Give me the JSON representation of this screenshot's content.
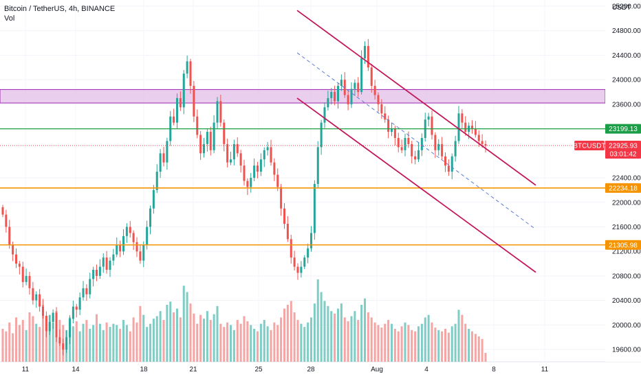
{
  "header": {
    "title": "Bitcoin / TetherUS, 4h, BINANCE",
    "indicator": "Vol"
  },
  "price_axis": {
    "currency": "USDT",
    "ticks": [
      "25200.00",
      "24800.00",
      "24400.00",
      "24000.00",
      "23600.00",
      "22400.00",
      "22000.00",
      "21600.00",
      "21200.00",
      "20800.00",
      "20400.00",
      "20000.00",
      "19600.00"
    ]
  },
  "time_axis": {
    "labels": [
      "11",
      "14",
      "18",
      "21",
      "25",
      "28",
      "Aug",
      "4",
      "8",
      "11"
    ]
  },
  "colors": {
    "up": "#26a69a",
    "down": "#ef5350",
    "vol_up": "#7fcdc4",
    "vol_down": "#f4a5a4",
    "green_line": "#1b9e45",
    "orange_line": "#f59400",
    "channel": "#c2185b",
    "midline": "#5b7bd6",
    "zone_fill": "#e1bee7",
    "zone_border": "#9c27b0",
    "current_tag": "#f23645"
  },
  "price_tags": {
    "green_level": "23199.13",
    "current_symbol": "BTCUSDT",
    "current_price": "22925.93",
    "countdown": "03:01:42",
    "orange_upper": "22234.18",
    "orange_lower": "21305.98"
  },
  "chart_data": {
    "type": "candlestick",
    "title": "Bitcoin / TetherUS, 4h, BINANCE",
    "ylim": [
      19400,
      25300
    ],
    "horizontal_levels": [
      {
        "price": 23199.13,
        "color": "green"
      },
      {
        "price": 22234.18,
        "color": "orange"
      },
      {
        "price": 21305.98,
        "color": "orange"
      }
    ],
    "resistance_zone": {
      "from": 23620,
      "to": 23840
    },
    "current_price": 22925.93,
    "channel_upper_start": 25130,
    "channel_lower_start": 23700,
    "close_series": [
      21800,
      21600,
      21300,
      21150,
      21000,
      20950,
      20700,
      20800,
      20600,
      20400,
      20500,
      20300,
      20150,
      19900,
      20050,
      20200,
      19800,
      19700,
      19600,
      19800,
      20100,
      20300,
      20250,
      20450,
      20600,
      20500,
      20750,
      20900,
      20800,
      20950,
      21100,
      20900,
      21050,
      21150,
      21300,
      21200,
      21450,
      21600,
      21500,
      21350,
      21200,
      21050,
      21300,
      21600,
      21900,
      22200,
      22500,
      22800,
      22650,
      23000,
      23400,
      23300,
      23700,
      23550,
      24100,
      24300,
      23900,
      23400,
      23100,
      22800,
      22950,
      23150,
      22850,
      23300,
      23650,
      23300,
      22950,
      22650,
      22700,
      22950,
      22800,
      22600,
      22350,
      22250,
      22400,
      22600,
      22500,
      22700,
      22850,
      22900,
      22650,
      22450,
      22250,
      21900,
      21650,
      21400,
      21100,
      20950,
      20850,
      20950,
      21100,
      21250,
      21500,
      22300,
      22900,
      23300,
      23550,
      23700,
      23800,
      23650,
      23900,
      24000,
      23750,
      23600,
      23850,
      23950,
      23800,
      24350,
      24550,
      24200,
      23900,
      23750,
      23600,
      23450,
      23350,
      23150,
      23200,
      23050,
      22900,
      22850,
      23050,
      22950,
      22750,
      22700,
      22850,
      23050,
      23350,
      23400,
      23100,
      22850,
      22950,
      22750,
      22600,
      22500,
      22750,
      23000,
      23450,
      23300,
      23150,
      23250,
      23200,
      23100,
      23000,
      22950,
      22926
    ],
    "volume_series": [
      52,
      48,
      62,
      45,
      70,
      58,
      66,
      50,
      78,
      72,
      60,
      55,
      90,
      68,
      74,
      62,
      80,
      66,
      58,
      50,
      70,
      56,
      64,
      48,
      60,
      66,
      52,
      58,
      75,
      60,
      50,
      62,
      55,
      60,
      58,
      52,
      66,
      58,
      48,
      70,
      62,
      88,
      74,
      55,
      60,
      68,
      72,
      80,
      66,
      90,
      95,
      78,
      84,
      70,
      120,
      110,
      92,
      76,
      60,
      74,
      68,
      80,
      66,
      75,
      88,
      60,
      55,
      62,
      58,
      50,
      66,
      60,
      72,
      64,
      58,
      52,
      48,
      60,
      66,
      56,
      50,
      62,
      58,
      70,
      84,
      90,
      96,
      78,
      66,
      60,
      55,
      62,
      70,
      92,
      130,
      110,
      96,
      88,
      80,
      76,
      84,
      92,
      70,
      64,
      72,
      80,
      66,
      90,
      100,
      78,
      70,
      62,
      58,
      54,
      60,
      66,
      60,
      52,
      48,
      56,
      62,
      58,
      50,
      48,
      56,
      60,
      70,
      74,
      62,
      54,
      50,
      48,
      52,
      46,
      56,
      60,
      82,
      74,
      60,
      52,
      48,
      44,
      40,
      36,
      14
    ]
  }
}
